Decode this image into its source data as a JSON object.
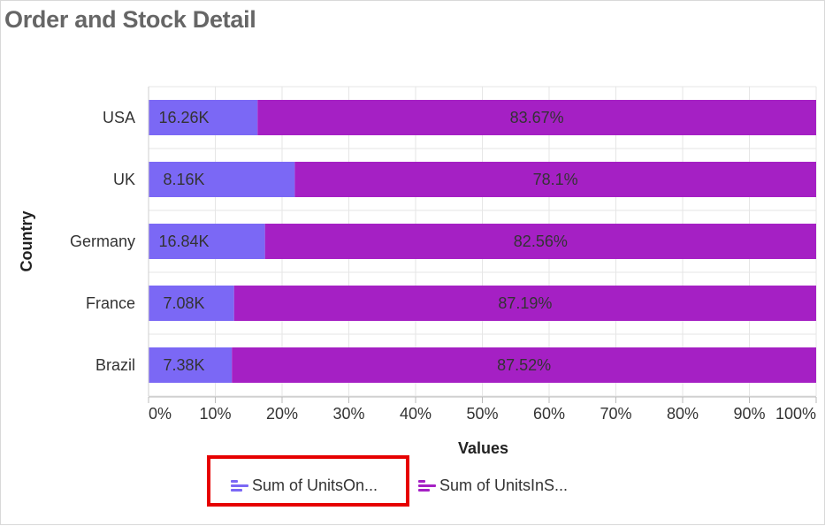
{
  "title": "Order and Stock Detail",
  "chart_data": {
    "type": "bar",
    "orientation": "horizontal",
    "stacking": "100%",
    "categories": [
      "USA",
      "UK",
      "Germany",
      "France",
      "Brazil"
    ],
    "series": [
      {
        "name": "Sum of UnitsOn...",
        "color": "#7b68f5",
        "percent": [
          16.33,
          21.9,
          17.44,
          12.81,
          12.48
        ],
        "labels": [
          "16.26K",
          "8.16K",
          "16.84K",
          "7.08K",
          "7.38K"
        ]
      },
      {
        "name": "Sum of UnitsInS...",
        "color": "#a520c4",
        "percent": [
          83.67,
          78.1,
          82.56,
          87.19,
          87.52
        ],
        "labels": [
          "83.67%",
          "78.1%",
          "82.56%",
          "87.19%",
          "87.52%"
        ]
      }
    ],
    "xlabel": "Values",
    "ylabel": "Country",
    "xlim": [
      0,
      100
    ],
    "xticks": [
      "0%",
      "10%",
      "20%",
      "30%",
      "40%",
      "50%",
      "60%",
      "70%",
      "80%",
      "90%",
      "100%"
    ],
    "grid": true,
    "legend_position": "bottom"
  }
}
